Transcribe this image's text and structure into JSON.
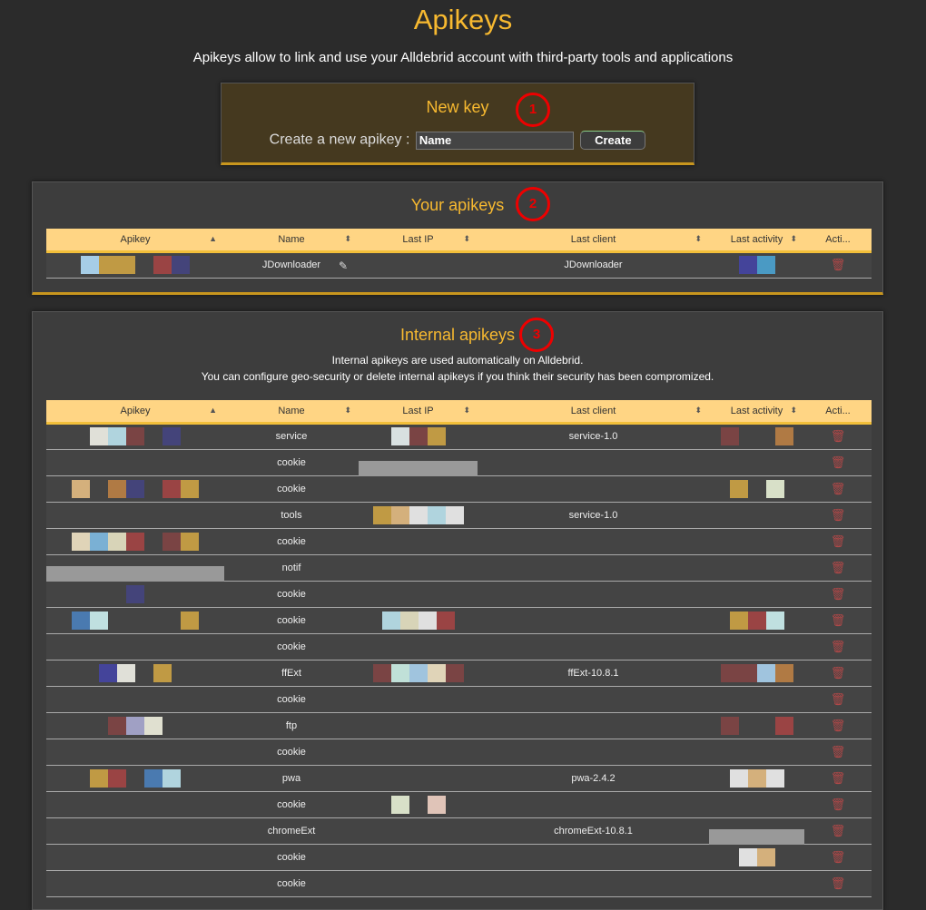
{
  "page": {
    "title": "Apikeys",
    "subtitle": "Apikeys allow to link and use your Alldebrid account with third-party tools and applications"
  },
  "new_key": {
    "title": "New key",
    "label": "Create a new apikey :",
    "input_value": "Name",
    "create_label": "Create",
    "marker": "1"
  },
  "your_apikeys": {
    "title": "Your apikeys",
    "marker": "2",
    "columns": [
      "Apikey",
      "Name",
      "Last IP",
      "Last client",
      "Last activity",
      "Acti..."
    ],
    "rows": [
      {
        "apikey": [
          "#a6cde6",
          "#c09a44",
          "#c09a44",
          "",
          "#9a4444",
          "#44447a"
        ],
        "name": "JDownloader",
        "ip": [],
        "client": "JDownloader",
        "activity": [
          "#44449a",
          "#4a9ac4"
        ]
      }
    ]
  },
  "internal_apikeys": {
    "title": "Internal apikeys",
    "marker": "3",
    "desc1": "Internal apikeys are used automatically on Alldebrid.",
    "desc2": "You can configure geo-security or delete internal apikeys if you think their security has been compromized.",
    "columns": [
      "Apikey",
      "Name",
      "Last IP",
      "Last client",
      "Last activity",
      "Acti..."
    ],
    "rows": [
      {
        "apikey": [
          "#e0e0d8",
          "#b0d4de",
          "#7a4444",
          "",
          "#44447a"
        ],
        "name": "service",
        "ip": [
          "#d8e0e0",
          "#7a4444",
          "#c09a44"
        ],
        "client": "service-1.0",
        "activity": [
          "#7a4444",
          "",
          "",
          "#b07a44"
        ]
      },
      {
        "apikey": [],
        "name": "cookie",
        "ip": "bar",
        "client": "",
        "activity": []
      },
      {
        "apikey": [
          "#d4b07c",
          "",
          "#b07a44",
          "#44447a",
          "",
          "#9a4444",
          "#c09a44"
        ],
        "name": "cookie",
        "ip": [],
        "client": "",
        "activity": [
          "#c09a44",
          "",
          "#d8e0c8"
        ]
      },
      {
        "apikey": [],
        "name": "tools",
        "ip": [
          "#c09a44",
          "#d4b07c",
          "#e0e0e0",
          "#b0d4de",
          "#e0e0e0"
        ],
        "client": "service-1.0",
        "activity": []
      },
      {
        "apikey": [
          "#e0d4b8",
          "#7ab0d4",
          "#d8d4b8",
          "#9a4444",
          "",
          "#7a4444",
          "#c09a44"
        ],
        "name": "cookie",
        "ip": [],
        "client": "",
        "activity": []
      },
      {
        "apikey": "bar",
        "name": "notif",
        "ip": [],
        "client": "",
        "activity": []
      },
      {
        "apikey": [
          "#44447a"
        ],
        "name": "cookie",
        "ip": [],
        "client": "",
        "activity": []
      },
      {
        "apikey": [
          "#4a7ab0",
          "#c0e0e0",
          "",
          "",
          "",
          "",
          "#c09a44"
        ],
        "name": "cookie",
        "ip": [
          "#b0d4de",
          "#d8d4b8",
          "#e0e0e0",
          "#9a4444"
        ],
        "client": "",
        "activity": [
          "#c09a44",
          "#9a4444",
          "#c0e0e0"
        ]
      },
      {
        "apikey": [],
        "name": "cookie",
        "ip": [],
        "client": "",
        "activity": []
      },
      {
        "apikey": [
          "#44449a",
          "#e0e0d8",
          "",
          "#c09a44"
        ],
        "name": "ffExt",
        "ip": [
          "#7a4444",
          "#c0e0d8",
          "#a0c4de",
          "#e0d4b8",
          "#7a4444"
        ],
        "client": "ffExt-10.8.1",
        "activity": [
          "#7a4444",
          "#7a4444",
          "#a0c4de",
          "#b07a44"
        ]
      },
      {
        "apikey": [],
        "name": "cookie",
        "ip": [],
        "client": "",
        "activity": []
      },
      {
        "apikey": [
          "#7a4444",
          "#a0a0c4",
          "#e0e0d0"
        ],
        "name": "ftp",
        "ip": [],
        "client": "",
        "activity": [
          "#7a4444",
          "",
          "",
          "#9a4444"
        ]
      },
      {
        "apikey": [],
        "name": "cookie",
        "ip": [],
        "client": "",
        "activity": []
      },
      {
        "apikey": [
          "#c09a44",
          "#9a4444",
          "",
          "#4a7ab0",
          "#b0d4de"
        ],
        "name": "pwa",
        "ip": [],
        "client": "pwa-2.4.2",
        "activity": [
          "#e0e0e0",
          "#d4b07c",
          "#e0e0e0"
        ]
      },
      {
        "apikey": [],
        "name": "cookie",
        "ip": [
          "#d8e0c8",
          "",
          "#e0c4b8"
        ],
        "client": "",
        "activity": []
      },
      {
        "apikey": [],
        "name": "chromeExt",
        "ip": [],
        "client": "chromeExt-10.8.1",
        "activity": "bar"
      },
      {
        "apikey": [],
        "name": "cookie",
        "ip": [],
        "client": "",
        "activity": [
          "#e0e0e0",
          "#d4b07c"
        ]
      },
      {
        "apikey": [],
        "name": "cookie",
        "ip": [],
        "client": "",
        "activity": []
      }
    ]
  },
  "icons": {
    "delete": "trash-icon",
    "edit": "edit-icon",
    "sort": "sort-icon"
  }
}
